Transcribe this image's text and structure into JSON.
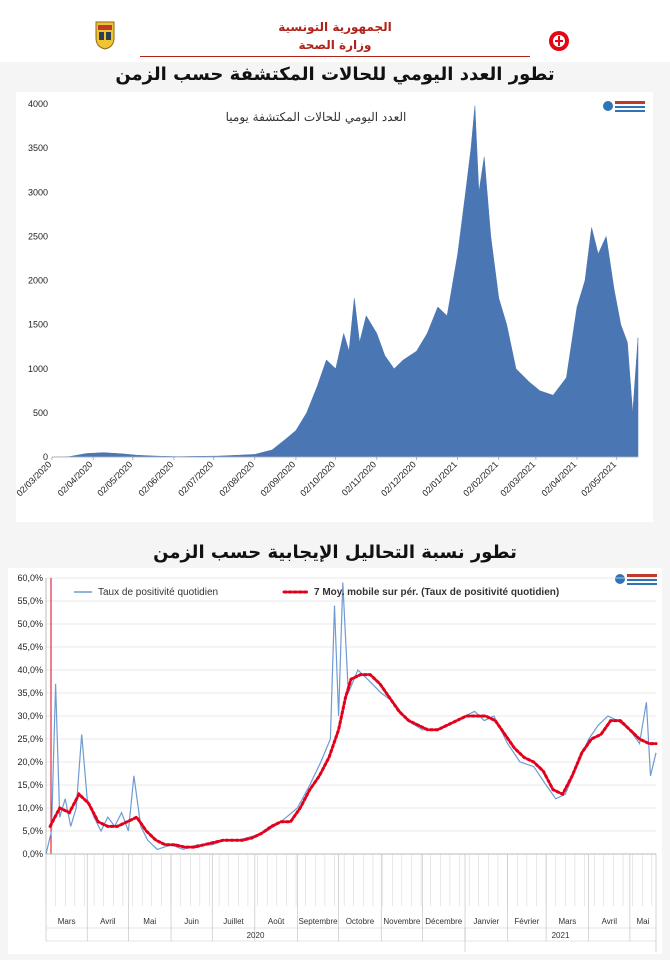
{
  "header": {
    "line1": "الجمهورية التونسية",
    "line2": "وزارة الصحة"
  },
  "colors": {
    "area": "#4a77b4",
    "positivity_line": "#6f9bd1",
    "moving_avg": "#e3001b",
    "title_red": "#b0231b"
  },
  "chart1": {
    "heading": "تطور العدد اليومي للحالات المكتشفة حسب الزمن",
    "inner_title": "العدد اليومي للحالات المكتشفة يوميا",
    "yticks": [
      "0",
      "500",
      "1000",
      "1500",
      "2000",
      "2500",
      "3000",
      "3500",
      "4000"
    ],
    "xticks": [
      "02/03/2020",
      "02/04/2020",
      "02/05/2020",
      "02/06/2020",
      "02/07/2020",
      "02/08/2020",
      "02/09/2020",
      "02/10/2020",
      "02/11/2020",
      "02/12/2020",
      "02/01/2021",
      "02/02/2021",
      "02/03/2021",
      "02/04/2021",
      "02/05/2021"
    ]
  },
  "chart2": {
    "heading": "تطور نسبة التحاليل الإيجابية حسب الزمن",
    "legend_line": "Taux de positivité quotidien",
    "legend_avg": "7 Moy. mobile sur pér. (Taux de positivité quotidien)",
    "yticks": [
      "0,0%",
      "5,0%",
      "10,0%",
      "15,0%",
      "20,0%",
      "25,0%",
      "30,0%",
      "35,0%",
      "40,0%",
      "45,0%",
      "50,0%",
      "55,0%",
      "60,0%"
    ],
    "months": [
      "Mars",
      "Avril",
      "Mai",
      "Juin",
      "Juillet",
      "Août",
      "Septembre",
      "Octobre",
      "Novembre",
      "Décembre",
      "Janvier",
      "Février",
      "Mars",
      "Avril",
      "Mai"
    ],
    "years": [
      "2020",
      "2021"
    ]
  },
  "chart_data": [
    {
      "type": "area",
      "title": "العدد اليومي للحالات المكتشفة يوميا",
      "xlabel": "",
      "ylabel": "",
      "ylim": [
        0,
        4000
      ],
      "x_range": [
        "02/03/2020",
        "18/05/2021"
      ],
      "grid": false,
      "series": [
        {
          "name": "",
          "points": [
            [
              "02/03/2020",
              0
            ],
            [
              "15/03/2020",
              5
            ],
            [
              "28/03/2020",
              40
            ],
            [
              "10/04/2020",
              50
            ],
            [
              "25/04/2020",
              35
            ],
            [
              "05/05/2020",
              20
            ],
            [
              "20/05/2020",
              10
            ],
            [
              "05/06/2020",
              5
            ],
            [
              "20/06/2020",
              8
            ],
            [
              "05/07/2020",
              10
            ],
            [
              "20/07/2020",
              20
            ],
            [
              "02/08/2020",
              30
            ],
            [
              "15/08/2020",
              80
            ],
            [
              "25/08/2020",
              200
            ],
            [
              "02/09/2020",
              300
            ],
            [
              "10/09/2020",
              500
            ],
            [
              "18/09/2020",
              800
            ],
            [
              "25/09/2020",
              1100
            ],
            [
              "02/10/2020",
              1000
            ],
            [
              "08/10/2020",
              1400
            ],
            [
              "12/10/2020",
              1200
            ],
            [
              "16/10/2020",
              1800
            ],
            [
              "20/10/2020",
              1300
            ],
            [
              "25/10/2020",
              1600
            ],
            [
              "02/11/2020",
              1400
            ],
            [
              "08/11/2020",
              1150
            ],
            [
              "15/11/2020",
              1000
            ],
            [
              "22/11/2020",
              1100
            ],
            [
              "02/12/2020",
              1200
            ],
            [
              "10/12/2020",
              1400
            ],
            [
              "18/12/2020",
              1700
            ],
            [
              "25/12/2020",
              1600
            ],
            [
              "02/01/2021",
              2300
            ],
            [
              "08/01/2021",
              3000
            ],
            [
              "12/01/2021",
              3500
            ],
            [
              "15/01/2021",
              3980
            ],
            [
              "18/01/2021",
              3000
            ],
            [
              "22/01/2021",
              3400
            ],
            [
              "27/01/2021",
              2500
            ],
            [
              "02/02/2021",
              1800
            ],
            [
              "08/02/2021",
              1500
            ],
            [
              "15/02/2021",
              1000
            ],
            [
              "25/02/2021",
              850
            ],
            [
              "05/03/2021",
              750
            ],
            [
              "15/03/2021",
              700
            ],
            [
              "25/03/2021",
              900
            ],
            [
              "02/04/2021",
              1700
            ],
            [
              "08/04/2021",
              2000
            ],
            [
              "13/04/2021",
              2600
            ],
            [
              "18/04/2021",
              2300
            ],
            [
              "24/04/2021",
              2500
            ],
            [
              "30/04/2021",
              1900
            ],
            [
              "05/05/2021",
              1500
            ],
            [
              "10/05/2021",
              1300
            ],
            [
              "14/05/2021",
              500
            ],
            [
              "18/05/2021",
              1350
            ]
          ]
        }
      ]
    },
    {
      "type": "line",
      "title": "",
      "xlabel": "",
      "ylabel": "",
      "ylim": [
        0,
        60
      ],
      "x_range": [
        "02/03/2020",
        "20/05/2021"
      ],
      "grid": true,
      "legend": "top",
      "series": [
        {
          "name": "Taux de positivité quotidien",
          "points": [
            [
              "02/03/2020",
              0
            ],
            [
              "06/03/2020",
              5
            ],
            [
              "09/03/2020",
              37
            ],
            [
              "12/03/2020",
              8
            ],
            [
              "16/03/2020",
              12
            ],
            [
              "20/03/2020",
              6
            ],
            [
              "24/03/2020",
              10
            ],
            [
              "28/03/2020",
              26
            ],
            [
              "01/04/2020",
              12
            ],
            [
              "06/04/2020",
              8
            ],
            [
              "11/04/2020",
              5
            ],
            [
              "16/04/2020",
              8
            ],
            [
              "21/04/2020",
              6
            ],
            [
              "26/04/2020",
              9
            ],
            [
              "01/05/2020",
              5
            ],
            [
              "05/05/2020",
              17
            ],
            [
              "10/05/2020",
              6
            ],
            [
              "15/05/2020",
              3
            ],
            [
              "22/05/2020",
              1
            ],
            [
              "01/06/2020",
              2
            ],
            [
              "10/06/2020",
              1
            ],
            [
              "20/06/2020",
              2
            ],
            [
              "01/07/2020",
              2
            ],
            [
              "10/07/2020",
              3
            ],
            [
              "20/07/2020",
              3
            ],
            [
              "01/08/2020",
              4
            ],
            [
              "10/08/2020",
              5
            ],
            [
              "20/08/2020",
              7
            ],
            [
              "01/09/2020",
              10
            ],
            [
              "10/09/2020",
              15
            ],
            [
              "18/09/2020",
              20
            ],
            [
              "25/09/2020",
              25
            ],
            [
              "28/09/2020",
              54
            ],
            [
              "01/10/2020",
              30
            ],
            [
              "04/10/2020",
              59
            ],
            [
              "08/10/2020",
              35
            ],
            [
              "15/10/2020",
              40
            ],
            [
              "22/10/2020",
              38
            ],
            [
              "01/11/2020",
              35
            ],
            [
              "10/11/2020",
              33
            ],
            [
              "20/11/2020",
              29
            ],
            [
              "01/12/2020",
              27
            ],
            [
              "10/12/2020",
              27
            ],
            [
              "20/12/2020",
              28
            ],
            [
              "01/01/2021",
              30
            ],
            [
              "08/01/2021",
              31
            ],
            [
              "15/01/2021",
              29
            ],
            [
              "22/01/2021",
              30
            ],
            [
              "01/02/2021",
              24
            ],
            [
              "10/02/2021",
              20
            ],
            [
              "20/02/2021",
              19
            ],
            [
              "01/03/2021",
              15
            ],
            [
              "08/03/2021",
              12
            ],
            [
              "15/03/2021",
              13
            ],
            [
              "22/03/2021",
              18
            ],
            [
              "01/04/2021",
              25
            ],
            [
              "08/04/2021",
              28
            ],
            [
              "15/04/2021",
              30
            ],
            [
              "22/04/2021",
              29
            ],
            [
              "01/05/2021",
              27
            ],
            [
              "08/05/2021",
              24
            ],
            [
              "13/05/2021",
              33
            ],
            [
              "16/05/2021",
              17
            ],
            [
              "20/05/2021",
              22
            ]
          ]
        },
        {
          "name": "7 Moy. mobile sur pér. (Taux de positivité quotidien)",
          "points": [
            [
              "05/03/2020",
              6
            ],
            [
              "12/03/2020",
              10
            ],
            [
              "19/03/2020",
              9
            ],
            [
              "26/03/2020",
              13
            ],
            [
              "02/04/2020",
              11
            ],
            [
              "09/04/2020",
              7
            ],
            [
              "16/04/2020",
              6
            ],
            [
              "23/04/2020",
              6
            ],
            [
              "30/04/2020",
              7
            ],
            [
              "07/05/2020",
              8
            ],
            [
              "14/05/2020",
              5
            ],
            [
              "21/05/2020",
              3
            ],
            [
              "28/05/2020",
              2
            ],
            [
              "04/06/2020",
              2
            ],
            [
              "11/06/2020",
              1.5
            ],
            [
              "18/06/2020",
              1.5
            ],
            [
              "25/06/2020",
              2
            ],
            [
              "02/07/2020",
              2.5
            ],
            [
              "09/07/2020",
              3
            ],
            [
              "16/07/2020",
              3
            ],
            [
              "23/07/2020",
              3
            ],
            [
              "30/07/2020",
              3.5
            ],
            [
              "06/08/2020",
              4.5
            ],
            [
              "13/08/2020",
              6
            ],
            [
              "20/08/2020",
              7
            ],
            [
              "27/08/2020",
              7
            ],
            [
              "03/09/2020",
              10
            ],
            [
              "10/09/2020",
              14
            ],
            [
              "17/09/2020",
              17
            ],
            [
              "24/09/2020",
              21
            ],
            [
              "01/10/2020",
              27
            ],
            [
              "06/10/2020",
              34
            ],
            [
              "10/10/2020",
              38
            ],
            [
              "17/10/2020",
              39
            ],
            [
              "24/10/2020",
              39
            ],
            [
              "31/10/2020",
              37
            ],
            [
              "07/11/2020",
              34
            ],
            [
              "14/11/2020",
              31
            ],
            [
              "21/11/2020",
              29
            ],
            [
              "28/11/2020",
              28
            ],
            [
              "05/12/2020",
              27
            ],
            [
              "12/12/2020",
              27
            ],
            [
              "19/12/2020",
              28
            ],
            [
              "26/12/2020",
              29
            ],
            [
              "02/01/2021",
              30
            ],
            [
              "09/01/2021",
              30
            ],
            [
              "16/01/2021",
              30
            ],
            [
              "23/01/2021",
              29
            ],
            [
              "30/01/2021",
              26
            ],
            [
              "06/02/2021",
              23
            ],
            [
              "13/02/2021",
              21
            ],
            [
              "20/02/2021",
              20
            ],
            [
              "27/02/2021",
              18
            ],
            [
              "06/03/2021",
              14
            ],
            [
              "13/03/2021",
              13
            ],
            [
              "20/03/2021",
              17
            ],
            [
              "27/03/2021",
              22
            ],
            [
              "03/04/2021",
              25
            ],
            [
              "10/04/2021",
              26
            ],
            [
              "17/04/2021",
              29
            ],
            [
              "24/04/2021",
              29
            ],
            [
              "01/05/2021",
              27
            ],
            [
              "08/05/2021",
              25
            ],
            [
              "15/05/2021",
              24
            ],
            [
              "20/05/2021",
              24
            ]
          ]
        }
      ]
    }
  ]
}
